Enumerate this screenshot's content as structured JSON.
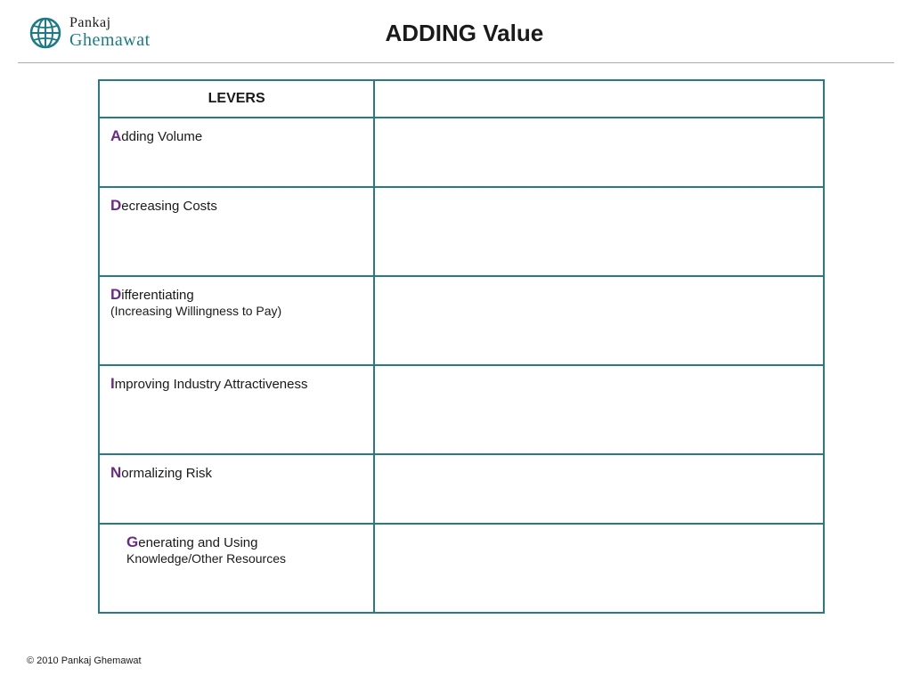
{
  "logo": {
    "first": "Pankaj",
    "last": "Ghemawat"
  },
  "title": "ADDING Value",
  "table": {
    "header": "LEVERS",
    "rows": [
      {
        "initial": "A",
        "rest": "dding Volume",
        "sub": "",
        "tall": false,
        "pad": false
      },
      {
        "initial": "D",
        "rest": "ecreasing Costs",
        "sub": "",
        "tall": true,
        "pad": false
      },
      {
        "initial": "D",
        "rest": "ifferentiating",
        "sub": "(Increasing Willingness to Pay)",
        "tall": true,
        "pad": false
      },
      {
        "initial": "I",
        "rest": "mproving Industry Attractiveness",
        "sub": "",
        "tall": true,
        "pad": false
      },
      {
        "initial": "N",
        "rest": "ormalizing Risk",
        "sub": "",
        "tall": false,
        "pad": false
      },
      {
        "initial": "G",
        "rest": "enerating and Using",
        "sub": "Knowledge/Other Resources",
        "tall": true,
        "pad": true
      }
    ]
  },
  "footer": "© 2010 Pankaj Ghemawat",
  "colors": {
    "border": "#2a7a85",
    "accent": "#6a2a8a",
    "logo_teal": "#1a7a85",
    "text": "#1a1a1a",
    "background": "#ffffff"
  }
}
